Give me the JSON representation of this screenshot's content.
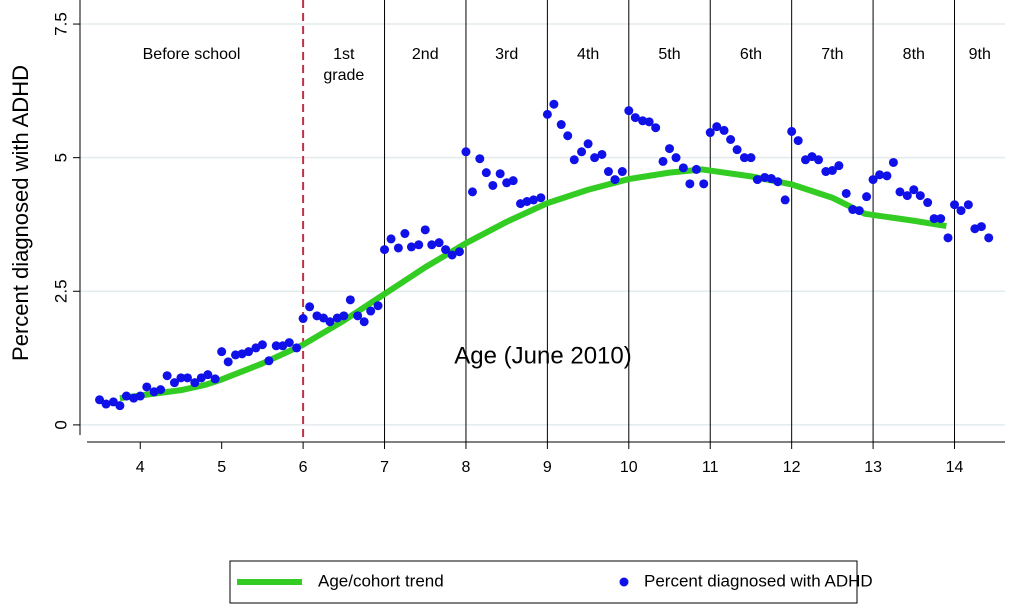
{
  "chart_data": {
    "type": "line",
    "x_label": "Age (June 2010)",
    "y_label": "Percent diagnosed with ADHD",
    "xlim": [
      3.26,
      14.62
    ],
    "ylim": [
      -0.32,
      7.95
    ],
    "xticks": [
      4,
      5,
      6,
      7,
      8,
      9,
      10,
      11,
      12,
      13,
      14
    ],
    "yticks": [
      0,
      2.5,
      5,
      7.5
    ],
    "grid": true,
    "legend": "bottom",
    "cutoff_line": {
      "x": 6,
      "color": "#c0304a"
    },
    "grade_lines": [
      7,
      8,
      9,
      10,
      11,
      12,
      13,
      14
    ],
    "region_labels": [
      [
        "Before school"
      ],
      [
        "1st",
        "grade"
      ],
      [
        "2nd"
      ],
      [
        "3rd"
      ],
      [
        "4th"
      ],
      [
        "5th"
      ],
      [
        "6th"
      ],
      [
        "7th"
      ],
      [
        "8th"
      ],
      [
        "9th"
      ]
    ],
    "series": [
      {
        "name": "Age/cohort trend",
        "type": "line",
        "color": "#33cc22",
        "x": [
          3.75,
          4,
          4.5,
          4.8,
          5,
          5.5,
          6,
          6.5,
          7,
          7.5,
          8,
          8.5,
          9,
          9.5,
          10,
          10.5,
          10.9,
          11.5,
          12,
          12.5,
          12.9,
          13.5,
          13.9
        ],
        "values": [
          0.5,
          0.55,
          0.65,
          0.75,
          0.85,
          1.15,
          1.5,
          1.95,
          2.45,
          2.95,
          3.4,
          3.8,
          4.15,
          4.4,
          4.6,
          4.72,
          4.78,
          4.65,
          4.5,
          4.25,
          3.95,
          3.82,
          3.72
        ]
      },
      {
        "name": "Percent diagnosed with ADHD",
        "type": "scatter",
        "color": "#1010e8",
        "x": [
          3.5,
          3.58,
          3.67,
          3.75,
          3.83,
          3.92,
          4,
          4.08,
          4.17,
          4.25,
          4.33,
          4.42,
          4.5,
          4.58,
          4.67,
          4.75,
          4.83,
          4.92,
          5,
          5.08,
          5.17,
          5.25,
          5.33,
          5.42,
          5.5,
          5.58,
          5.67,
          5.75,
          5.83,
          5.92,
          6,
          6.08,
          6.17,
          6.25,
          6.33,
          6.42,
          6.5,
          6.58,
          6.67,
          6.75,
          6.83,
          6.92,
          7,
          7.08,
          7.17,
          7.25,
          7.33,
          7.42,
          7.5,
          7.58,
          7.67,
          7.75,
          7.83,
          7.92,
          8,
          8.08,
          8.17,
          8.25,
          8.33,
          8.42,
          8.5,
          8.58,
          8.67,
          8.75,
          8.83,
          8.92,
          9,
          9.08,
          9.17,
          9.25,
          9.33,
          9.42,
          9.5,
          9.58,
          9.67,
          9.75,
          9.83,
          9.92,
          10,
          10.08,
          10.17,
          10.25,
          10.33,
          10.42,
          10.5,
          10.58,
          10.67,
          10.75,
          10.83,
          10.92,
          11,
          11.08,
          11.17,
          11.25,
          11.33,
          11.42,
          11.5,
          11.58,
          11.67,
          11.75,
          11.83,
          11.92,
          12,
          12.08,
          12.17,
          12.25,
          12.33,
          12.42,
          12.5,
          12.58,
          12.67,
          12.75,
          12.83,
          12.92,
          13,
          13.08,
          13.17,
          13.25,
          13.33,
          13.42,
          13.5,
          13.58,
          13.67,
          13.75,
          13.83,
          13.92,
          14,
          14.08,
          14.17,
          14.25,
          14.33,
          14.42
        ],
        "values": [
          0.47,
          0.39,
          0.43,
          0.36,
          0.54,
          0.5,
          0.54,
          0.71,
          0.62,
          0.66,
          0.92,
          0.79,
          0.88,
          0.88,
          0.79,
          0.88,
          0.94,
          0.86,
          1.37,
          1.18,
          1.31,
          1.33,
          1.37,
          1.44,
          1.5,
          1.2,
          1.48,
          1.48,
          1.54,
          1.44,
          1.99,
          2.21,
          2.04,
          2.0,
          1.93,
          2.0,
          2.04,
          2.34,
          2.04,
          1.93,
          2.13,
          2.23,
          3.28,
          3.48,
          3.31,
          3.58,
          3.33,
          3.37,
          3.65,
          3.37,
          3.41,
          3.28,
          3.18,
          3.24,
          5.11,
          4.36,
          4.98,
          4.72,
          4.48,
          4.7,
          4.53,
          4.57,
          4.14,
          4.18,
          4.21,
          4.25,
          5.81,
          6.0,
          5.62,
          5.41,
          4.96,
          5.11,
          5.26,
          5.0,
          5.06,
          4.74,
          4.59,
          4.74,
          5.88,
          5.75,
          5.69,
          5.67,
          5.56,
          4.93,
          5.17,
          5.0,
          4.81,
          4.51,
          4.78,
          4.51,
          5.47,
          5.58,
          5.51,
          5.34,
          5.15,
          5.0,
          5.0,
          4.59,
          4.63,
          4.61,
          4.55,
          4.21,
          5.49,
          5.32,
          4.96,
          5.02,
          4.96,
          4.74,
          4.76,
          4.85,
          4.33,
          4.03,
          4.01,
          4.27,
          4.59,
          4.68,
          4.66,
          4.91,
          4.36,
          4.29,
          4.4,
          4.29,
          4.16,
          3.86,
          3.86,
          3.5,
          4.12,
          4.01,
          4.12,
          3.67,
          3.71,
          3.5
        ]
      }
    ]
  }
}
